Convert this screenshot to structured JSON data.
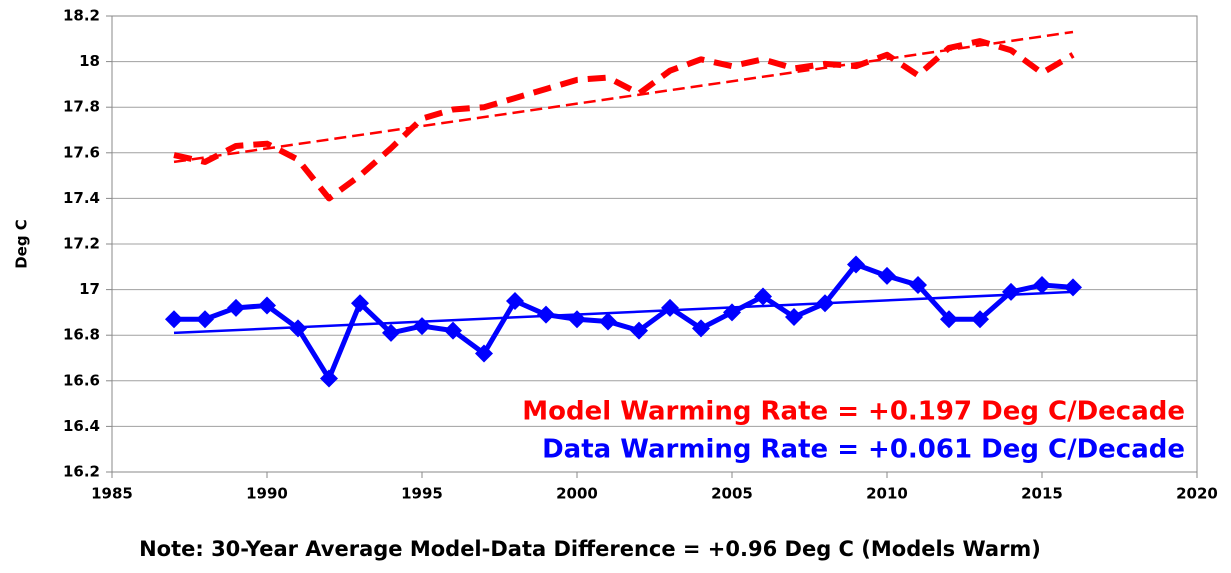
{
  "chart_data": {
    "type": "line",
    "y_label": "Deg C",
    "note": "Note: 30-Year Average Model-Data Difference = +0.96 Deg C (Models Warm)",
    "annotations": [
      {
        "text": "Model Warming Rate = +0.197 Deg C/Decade",
        "color": "#ff0000"
      },
      {
        "text": "Data Warming Rate = +0.061 Deg C/Decade",
        "color": "#0000ff"
      }
    ],
    "x": [
      1987,
      1988,
      1989,
      1990,
      1991,
      1992,
      1993,
      1994,
      1995,
      1996,
      1997,
      1998,
      1999,
      2000,
      2001,
      2002,
      2003,
      2004,
      2005,
      2006,
      2007,
      2008,
      2009,
      2010,
      2011,
      2012,
      2013,
      2014,
      2015,
      2016
    ],
    "series": [
      {
        "color": "#ff0000",
        "style": "dashed-thick",
        "values": [
          17.59,
          17.56,
          17.63,
          17.64,
          17.57,
          17.4,
          17.5,
          17.62,
          17.75,
          17.79,
          17.8,
          17.84,
          17.88,
          17.92,
          17.93,
          17.86,
          17.96,
          18.01,
          17.98,
          18.01,
          17.97,
          17.99,
          17.98,
          18.03,
          17.94,
          18.06,
          18.09,
          18.05,
          17.95,
          18.03
        ]
      },
      {
        "color": "#ff0000",
        "style": "dashed-thin",
        "x": [
          1987,
          2016
        ],
        "values": [
          17.56,
          18.13
        ]
      },
      {
        "color": "#0000ff",
        "style": "solid-diamond",
        "values": [
          16.87,
          16.87,
          16.92,
          16.93,
          16.83,
          16.61,
          16.94,
          16.81,
          16.84,
          16.82,
          16.72,
          16.95,
          16.89,
          16.87,
          16.86,
          16.82,
          16.92,
          16.83,
          16.9,
          16.97,
          16.88,
          16.94,
          17.11,
          17.06,
          17.02,
          16.87,
          16.87,
          16.99,
          17.02,
          17.01
        ]
      },
      {
        "color": "#0000ff",
        "style": "solid-thin",
        "x": [
          1987,
          2016
        ],
        "values": [
          16.81,
          16.99
        ]
      }
    ],
    "xlim": [
      1985,
      2020
    ],
    "xticks": [
      1985,
      1990,
      1995,
      2000,
      2005,
      2010,
      2015,
      2020
    ],
    "ylim": [
      16.2,
      18.2
    ],
    "yticks": [
      16.2,
      16.4,
      16.6,
      16.8,
      17,
      17.2,
      17.4,
      17.6,
      17.8,
      18,
      18.2
    ],
    "grid": true
  }
}
